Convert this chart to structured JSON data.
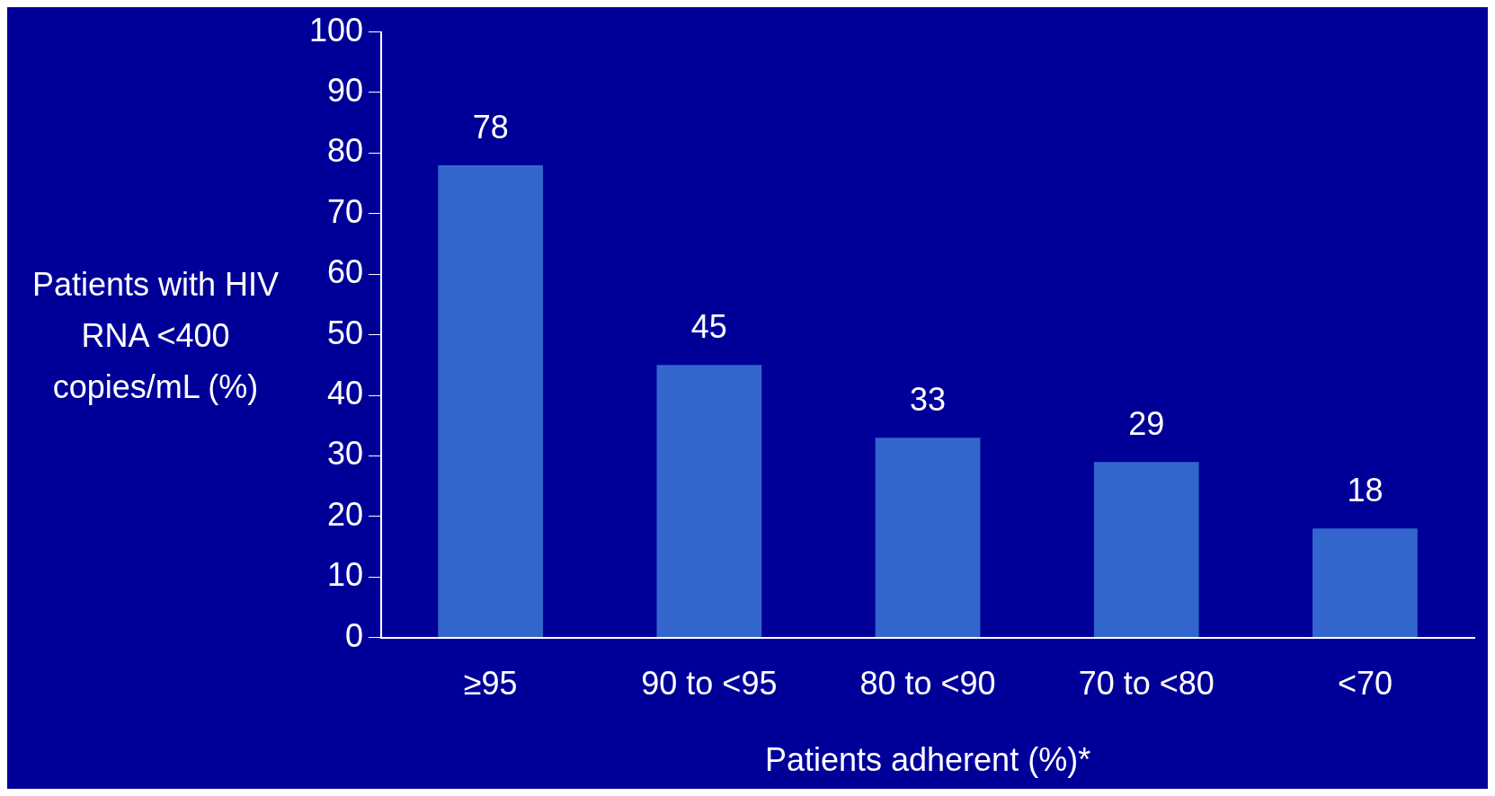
{
  "chart_data": {
    "type": "bar",
    "xlabel": "Patients adherent (%)*",
    "ylabel": "Patients with HIV RNA <400 copies/mL (%)",
    "categories": [
      "≥95",
      "90 to <95",
      "80 to <90",
      "70 to <80",
      "<70"
    ],
    "values": [
      78,
      45,
      33,
      29,
      18
    ],
    "color": "#3366cc",
    "ylim": [
      0,
      100
    ],
    "yticks": [
      0,
      10,
      20,
      30,
      40,
      50,
      60,
      70,
      80,
      90,
      100
    ],
    "grid": false,
    "data_labels": true
  }
}
